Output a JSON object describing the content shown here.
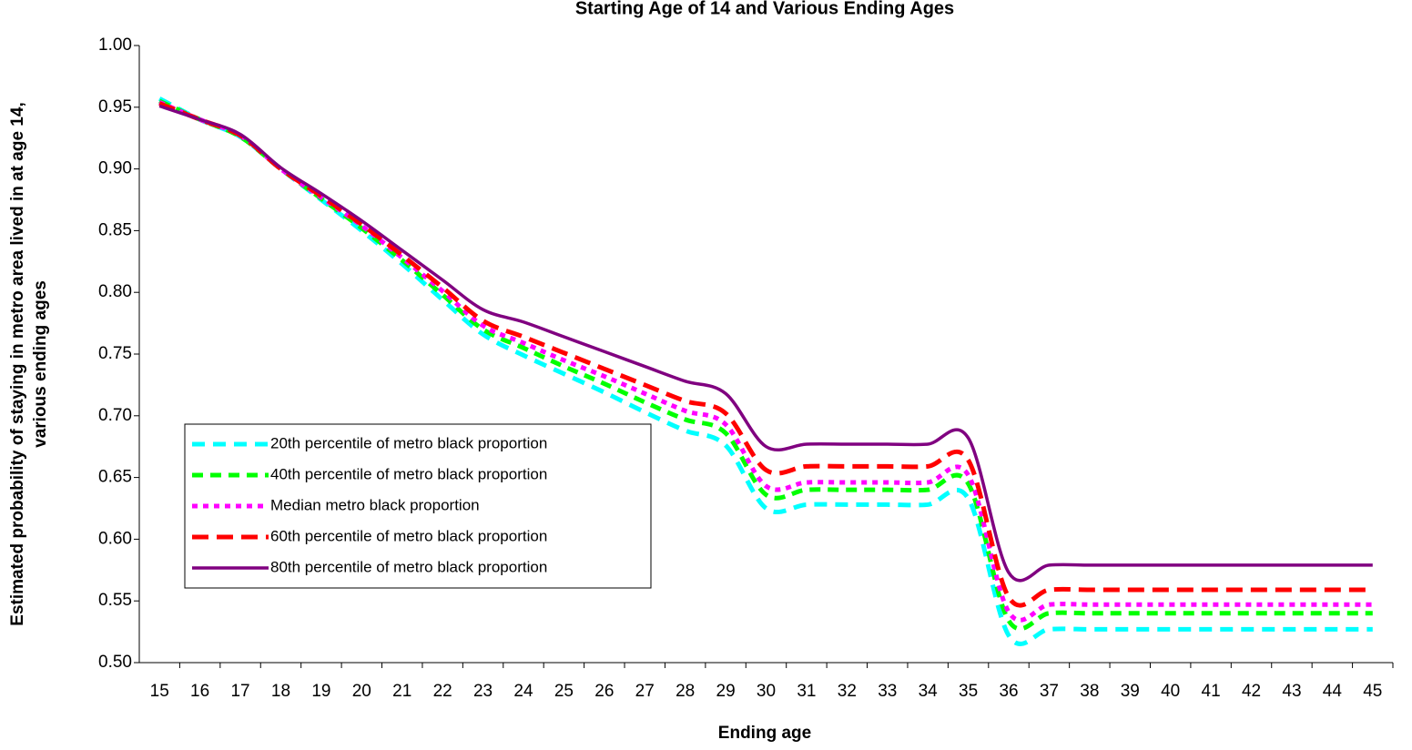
{
  "chart_data": {
    "type": "line",
    "title": "Starting Age of 14 and Various Ending Ages",
    "x_label": "Ending age",
    "y_label": [
      "Estimated probability of staying in metro area lived in at age 14,",
      "various ending ages"
    ],
    "categories": [
      15,
      16,
      17,
      18,
      19,
      20,
      21,
      22,
      23,
      24,
      25,
      26,
      27,
      28,
      29,
      30,
      31,
      32,
      33,
      34,
      35,
      36,
      37,
      38,
      39,
      40,
      41,
      42,
      43,
      44,
      45
    ],
    "ylim": [
      0.5,
      1.0
    ],
    "yticks": [
      {
        "value": 0.5,
        "label": "0.50"
      },
      {
        "value": 0.55,
        "label": "0.55"
      },
      {
        "value": 0.6,
        "label": "0.60"
      },
      {
        "value": 0.65,
        "label": "0.65"
      },
      {
        "value": 0.7,
        "label": "0.70"
      },
      {
        "value": 0.75,
        "label": "0.75"
      },
      {
        "value": 0.8,
        "label": "0.80"
      },
      {
        "value": 0.85,
        "label": "0.85"
      },
      {
        "value": 0.9,
        "label": "0.90"
      },
      {
        "value": 0.95,
        "label": "0.95"
      },
      {
        "value": 1.0,
        "label": "1.00"
      }
    ],
    "grid": false,
    "legend": "center left",
    "series": [
      {
        "name": "20th percentile of metro black proportion",
        "color": "#00ffff",
        "dash": "14,9",
        "values": [
          0.957,
          0.94,
          0.926,
          0.9,
          0.875,
          0.85,
          0.823,
          0.794,
          0.766,
          0.749,
          0.734,
          0.719,
          0.703,
          0.688,
          0.676,
          0.625,
          0.628,
          0.628,
          0.628,
          0.628,
          0.633,
          0.522,
          0.527,
          0.527,
          0.527,
          0.527,
          0.527,
          0.527,
          0.527,
          0.527,
          0.527
        ]
      },
      {
        "name": "40th percentile of metro black proportion",
        "color": "#00ff00",
        "dash": "12,8",
        "values": [
          0.955,
          0.94,
          0.926,
          0.9,
          0.876,
          0.852,
          0.826,
          0.798,
          0.77,
          0.755,
          0.74,
          0.726,
          0.711,
          0.697,
          0.686,
          0.636,
          0.64,
          0.64,
          0.64,
          0.64,
          0.645,
          0.534,
          0.54,
          0.54,
          0.54,
          0.54,
          0.54,
          0.54,
          0.54,
          0.54,
          0.54
        ]
      },
      {
        "name": "Median metro black proportion",
        "color": "#ff00ff",
        "dash": "6,6",
        "values": [
          0.954,
          0.94,
          0.927,
          0.9,
          0.877,
          0.854,
          0.828,
          0.801,
          0.773,
          0.759,
          0.745,
          0.732,
          0.718,
          0.704,
          0.693,
          0.643,
          0.646,
          0.646,
          0.646,
          0.646,
          0.652,
          0.541,
          0.547,
          0.547,
          0.547,
          0.547,
          0.547,
          0.547,
          0.547,
          0.547,
          0.547
        ]
      },
      {
        "name": "60th percentile of metro black proportion",
        "color": "#ff0000",
        "dash": "18,9",
        "values": [
          0.953,
          0.94,
          0.927,
          0.9,
          0.878,
          0.855,
          0.83,
          0.804,
          0.777,
          0.764,
          0.751,
          0.738,
          0.725,
          0.712,
          0.702,
          0.656,
          0.659,
          0.659,
          0.659,
          0.659,
          0.664,
          0.553,
          0.559,
          0.559,
          0.559,
          0.559,
          0.559,
          0.559,
          0.559,
          0.559,
          0.559
        ]
      },
      {
        "name": "80th percentile of metro black proportion",
        "color": "#800080",
        "dash": null,
        "values": [
          0.951,
          0.94,
          0.928,
          0.901,
          0.88,
          0.858,
          0.834,
          0.81,
          0.786,
          0.776,
          0.764,
          0.752,
          0.74,
          0.728,
          0.718,
          0.675,
          0.677,
          0.677,
          0.677,
          0.677,
          0.682,
          0.573,
          0.579,
          0.579,
          0.579,
          0.579,
          0.579,
          0.579,
          0.579,
          0.579,
          0.579
        ]
      }
    ]
  }
}
